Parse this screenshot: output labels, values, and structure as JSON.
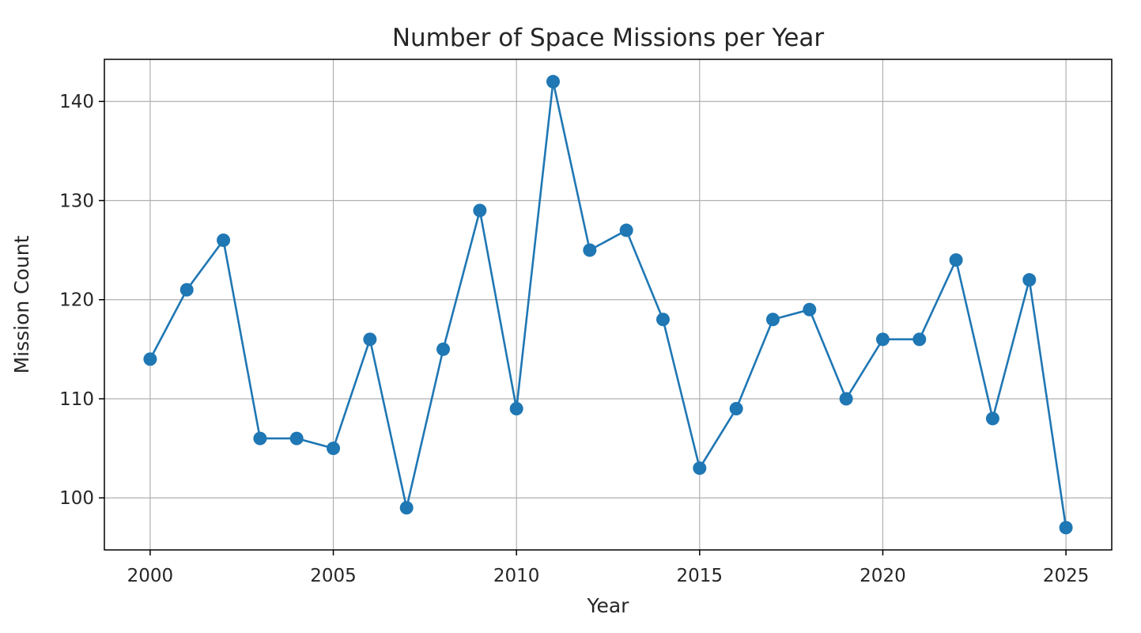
{
  "chart_data": {
    "type": "line",
    "title": "Number of Space Missions per Year",
    "xlabel": "Year",
    "ylabel": "Mission Count",
    "x": [
      2000,
      2001,
      2002,
      2003,
      2004,
      2005,
      2006,
      2007,
      2008,
      2009,
      2010,
      2011,
      2012,
      2013,
      2014,
      2015,
      2016,
      2017,
      2018,
      2019,
      2020,
      2021,
      2022,
      2023,
      2024,
      2025
    ],
    "series": [
      {
        "values": [
          114,
          121,
          126,
          106,
          106,
          105,
          116,
          99,
          115,
          129,
          109,
          142,
          125,
          127,
          118,
          103,
          109,
          118,
          119,
          110,
          116,
          116,
          124,
          108,
          122,
          97
        ],
        "color": "#1f77b4",
        "marker": "circle"
      }
    ],
    "xticks": [
      "2000",
      "2005",
      "2010",
      "2015",
      "2020",
      "2025"
    ],
    "yticks": [
      "100",
      "110",
      "120",
      "130",
      "140"
    ],
    "xlim": [
      1998.75,
      2026.25
    ],
    "ylim": [
      94.75,
      144.25
    ],
    "grid": true,
    "colors": {
      "line": "#1f77b4",
      "grid": "#b0b0b0",
      "axes": "#000000",
      "text": "#262626"
    }
  }
}
